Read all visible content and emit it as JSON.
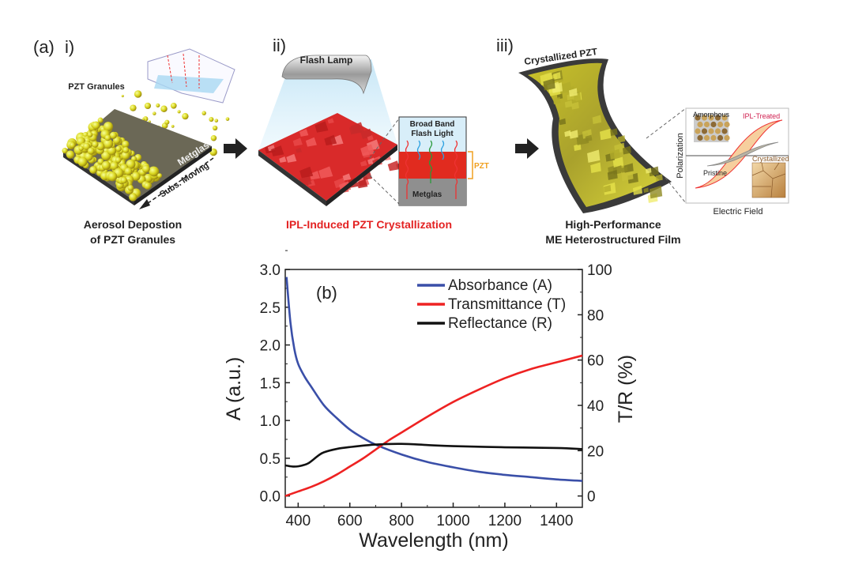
{
  "panel_a": {
    "label": "(a)",
    "step1": {
      "label": "i)",
      "granules_label": "PZT Granules",
      "substrate_label": "Metglas",
      "moving_label": "Subs. Moving",
      "caption_line1": "Aerosol Depostion",
      "caption_line2": "of PZT Granules"
    },
    "step2": {
      "label": "ii)",
      "lamp_label": "Flash Lamp",
      "inset_title_line1": "Broad Band",
      "inset_title_line2": "Flash Light",
      "pzt_label": "PZT",
      "substrate_label": "Metglas",
      "caption": "IPL-Induced PZT Crystallization",
      "caption_color": "#e32222"
    },
    "step3": {
      "label": "iii)",
      "film_label": "Crystallized PZT",
      "amorphous_label": "Amorphous",
      "treated_label": "IPL-Treated",
      "yaxis_label": "Polarization",
      "pristine_label": "Pristine",
      "crystallized_label": "Crystallized",
      "xaxis_label": "Electric Field",
      "caption_line1": "High-Performance",
      "caption_line2": "ME Heterostructured Film"
    }
  },
  "chart_data": {
    "type": "line",
    "panel_label": "(b)",
    "xlabel": "Wavelength (nm)",
    "ylabel": "A (a.u.)",
    "y2label": "T/R (%)",
    "xlim": [
      350,
      1500
    ],
    "ylim": [
      -0.15,
      3.0
    ],
    "y2lim": [
      -5,
      100
    ],
    "xticks": [
      400,
      600,
      800,
      1000,
      1200,
      1400
    ],
    "yticks": [
      "0.0",
      "0.5",
      "1.0",
      "1.5",
      "2.0",
      "2.5",
      "3.0"
    ],
    "y2ticks": [
      "0",
      "20",
      "40",
      "60",
      "80",
      "100"
    ],
    "grid": false,
    "legend_position": "top-right",
    "series": [
      {
        "name": "Absorbance (A)",
        "axis": "left",
        "color": "#3a4fa8",
        "x": [
          355,
          370,
          385,
          400,
          425,
          450,
          500,
          550,
          600,
          650,
          700,
          800,
          900,
          1000,
          1100,
          1200,
          1300,
          1400,
          1500
        ],
        "y": [
          2.9,
          2.3,
          1.95,
          1.75,
          1.58,
          1.45,
          1.2,
          1.03,
          0.88,
          0.77,
          0.68,
          0.55,
          0.45,
          0.38,
          0.32,
          0.28,
          0.25,
          0.22,
          0.2
        ]
      },
      {
        "name": "Transmittance (T)",
        "axis": "right",
        "color": "#ee2222",
        "x": [
          350,
          400,
          450,
          500,
          550,
          600,
          650,
          700,
          750,
          800,
          900,
          1000,
          1100,
          1200,
          1300,
          1400,
          1500
        ],
        "y": [
          0,
          2,
          4,
          6.5,
          9.5,
          13,
          16.5,
          20.5,
          24.5,
          28,
          35,
          41.5,
          47,
          52,
          56,
          59,
          62
        ]
      },
      {
        "name": "Reflectance (R)",
        "axis": "right",
        "color": "#111111",
        "x": [
          350,
          365,
          380,
          400,
          420,
          440,
          460,
          480,
          500,
          550,
          600,
          700,
          800,
          900,
          1000,
          1200,
          1400,
          1500
        ],
        "y": [
          13.5,
          13.2,
          13,
          13.1,
          13.6,
          14.5,
          16.2,
          18,
          19.3,
          20.8,
          21.6,
          22.7,
          23,
          22.5,
          22,
          21.5,
          21.2,
          20.7
        ]
      }
    ]
  }
}
